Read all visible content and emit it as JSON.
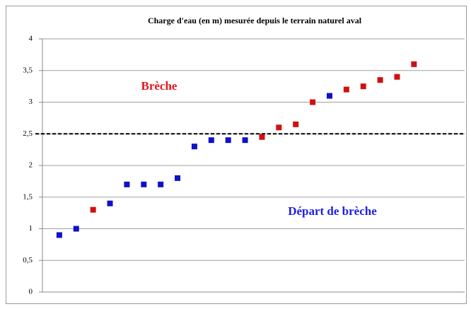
{
  "chart_data": {
    "type": "scatter",
    "title": "Charge d'eau (en m) mesurée depuis le terrain naturel aval",
    "annotations": [
      {
        "text": "Brèche",
        "color": "#e8141c"
      },
      {
        "text": "Départ de brèche",
        "color": "#1e1ee6"
      }
    ],
    "series": [
      {
        "color": "#1010c8",
        "x": [
          1,
          2,
          4,
          5,
          6,
          7,
          8,
          9,
          10,
          11,
          12,
          17
        ],
        "values": [
          0.9,
          1.0,
          1.4,
          1.7,
          1.7,
          1.7,
          1.8,
          2.3,
          2.4,
          2.4,
          2.4,
          3.1
        ]
      },
      {
        "color": "#d01010",
        "x": [
          3,
          13,
          14,
          15,
          16,
          18,
          19,
          20,
          21,
          22
        ],
        "values": [
          1.3,
          2.45,
          2.6,
          2.65,
          3.0,
          3.2,
          3.25,
          3.35,
          3.4,
          3.6
        ]
      }
    ],
    "threshold": 2.5,
    "xlim": [
      0,
      25
    ],
    "ylim": [
      0,
      4
    ],
    "yticks": [
      0,
      {
        "value": 0.5,
        "label": "0,5"
      },
      1,
      {
        "value": 1.5,
        "label": "1,5"
      },
      2,
      {
        "value": 2.5,
        "label": "2,5"
      },
      3,
      {
        "value": 3.5,
        "label": "3,5"
      },
      4
    ],
    "grid": true
  }
}
